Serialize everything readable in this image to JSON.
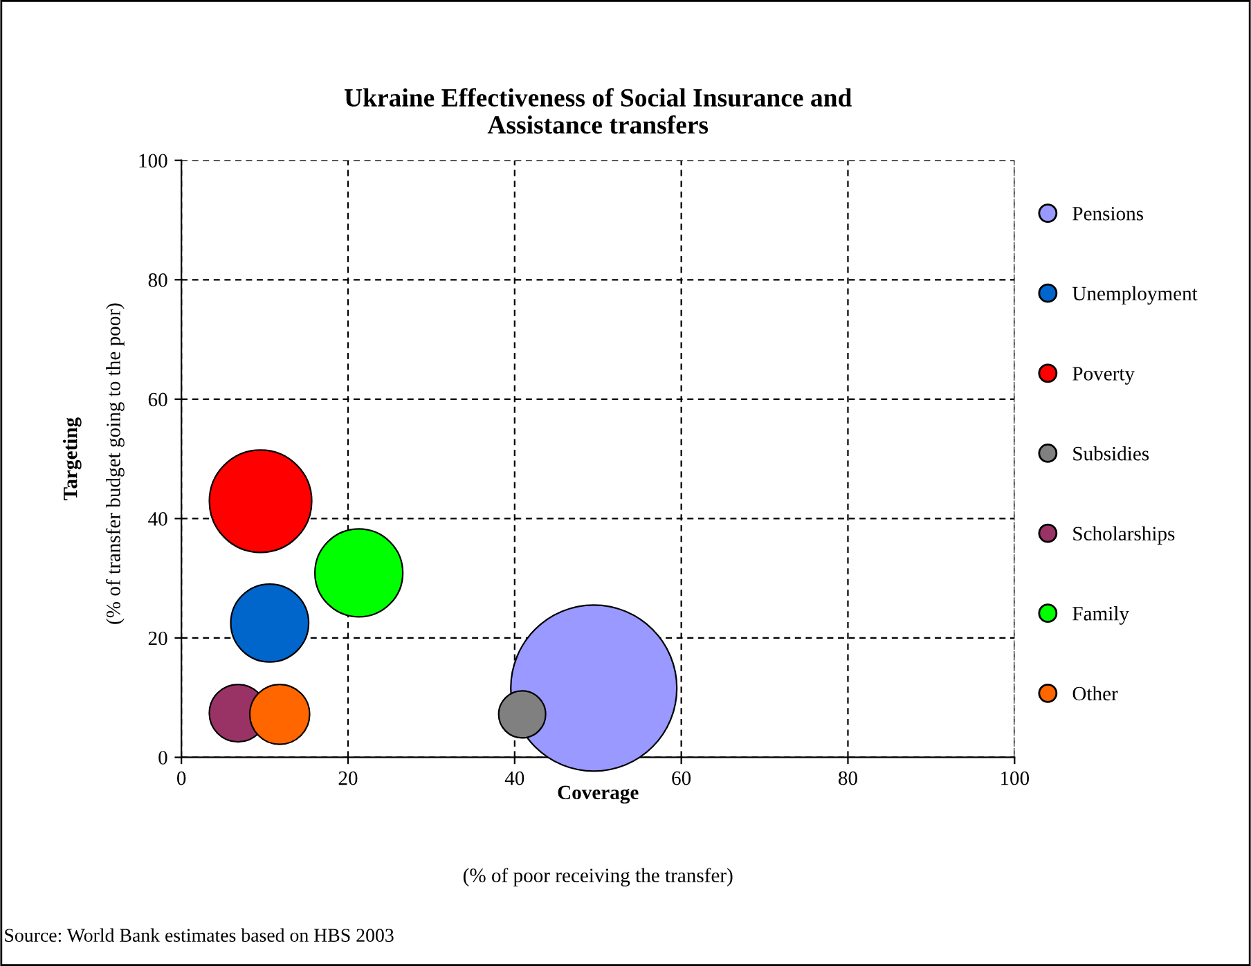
{
  "chart_data": {
    "type": "bubble",
    "title": "Ukraine Effectiveness of Social Insurance and\nAssistance transfers",
    "xlabel": "Coverage",
    "ylabel": "Targeting",
    "annotations": [
      "(% of poor receiving the transfer)",
      "(% of transfer budget going to the poor)",
      "Source: World Bank estimates based on HBS 2003"
    ],
    "xlim": [
      0,
      100
    ],
    "ylim": [
      0,
      100
    ],
    "xticks": [
      0,
      20,
      40,
      60,
      80,
      100
    ],
    "yticks": [
      0,
      20,
      40,
      60,
      80,
      100
    ],
    "grid": true,
    "legend": "right",
    "series": [
      {
        "name": "Pensions",
        "color": "#9999ff",
        "x": [
          49.5
        ],
        "values": [
          11.6
        ],
        "sizes": [
          1
        ]
      },
      {
        "name": "Unemployment",
        "color": "#0066cc",
        "x": [
          10.6
        ],
        "values": [
          22.5
        ],
        "sizes": [
          0.22
        ]
      },
      {
        "name": "Poverty",
        "color": "#ff0000",
        "x": [
          9.5
        ],
        "values": [
          42.9
        ],
        "sizes": [
          0.38
        ]
      },
      {
        "name": "Subsidies",
        "color": "#808080",
        "x": [
          40.9
        ],
        "values": [
          7.2
        ],
        "sizes": [
          0.08
        ]
      },
      {
        "name": "Scholarships",
        "color": "#993366",
        "x": [
          6.8
        ],
        "values": [
          7.4
        ],
        "sizes": [
          0.12
        ]
      },
      {
        "name": "Family",
        "color": "#00ff00",
        "x": [
          21.3
        ],
        "values": [
          30.9
        ],
        "sizes": [
          0.28
        ]
      },
      {
        "name": "Other",
        "color": "#ff6600",
        "x": [
          11.8
        ],
        "values": [
          7.2
        ],
        "sizes": [
          0.13
        ]
      }
    ]
  }
}
